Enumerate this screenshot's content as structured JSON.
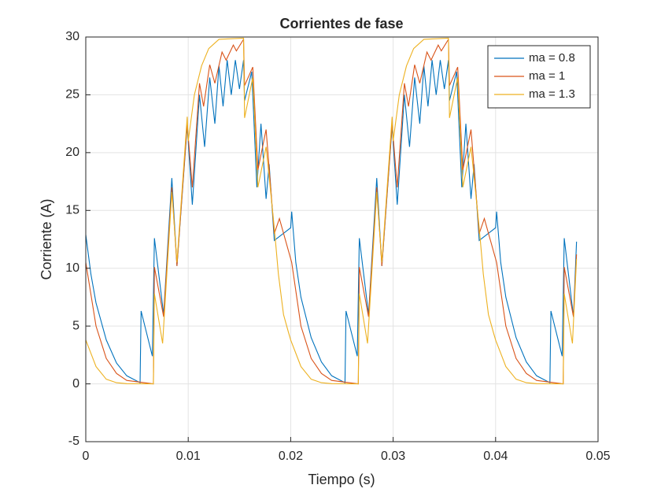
{
  "chart_data": {
    "type": "line",
    "title": "Corrientes de fase",
    "x_label": "Tiempo (s)",
    "y_label": "Corriente (A)",
    "xlim": [
      0,
      0.05
    ],
    "ylim": [
      -5,
      30
    ],
    "xticks": [
      0,
      0.01,
      0.02,
      0.03,
      0.04,
      0.05
    ],
    "yticks": [
      -5,
      0,
      5,
      10,
      15,
      20,
      25,
      30
    ],
    "grid": true,
    "legend": "top-right",
    "series": [
      {
        "name": "ma = 0.8",
        "color": "#0072BD",
        "x": [
          0,
          0.0005,
          0.001,
          0.002,
          0.003,
          0.004,
          0.0053,
          0.0054,
          0.0065,
          0.0067,
          0.0076,
          0.0084,
          0.0089,
          0.0099,
          0.0104,
          0.0111,
          0.0116,
          0.0121,
          0.0126,
          0.013,
          0.0134,
          0.0138,
          0.0142,
          0.0146,
          0.015,
          0.0154,
          0.0155,
          0.0162,
          0.0167,
          0.0171,
          0.0176,
          0.0179,
          0.0184,
          0.02,
          0.0201,
          0.0205,
          0.021,
          0.022,
          0.023,
          0.024,
          0.0253,
          0.0254,
          0.0265,
          0.0267,
          0.0276,
          0.0284,
          0.0289,
          0.0299,
          0.0304,
          0.0311,
          0.0316,
          0.0321,
          0.0326,
          0.033,
          0.0334,
          0.0338,
          0.0342,
          0.0346,
          0.035,
          0.0354,
          0.0355,
          0.0362,
          0.0367,
          0.0371,
          0.0376,
          0.0379,
          0.0384,
          0.04,
          0.0401,
          0.0405,
          0.041,
          0.042,
          0.043,
          0.044,
          0.0453,
          0.0454,
          0.0465,
          0.0467,
          0.0476,
          0.0479
        ],
        "values": [
          12.9,
          9.5,
          7,
          3.8,
          1.8,
          0.7,
          0.1,
          6.3,
          2.4,
          12.6,
          6,
          17.8,
          10.2,
          22.3,
          15.5,
          25,
          20.5,
          26.5,
          22.5,
          27.5,
          24,
          28,
          25,
          28,
          25.5,
          28,
          24.5,
          27,
          17,
          22.5,
          16,
          19,
          12.4,
          13.5,
          14.9,
          10.5,
          7.5,
          4,
          1.9,
          0.7,
          0.1,
          6.3,
          2.4,
          12.6,
          6,
          17.8,
          10.2,
          22.3,
          15.5,
          25,
          20.5,
          26.5,
          22.5,
          27.5,
          24,
          28,
          25,
          28,
          25.5,
          28,
          24.5,
          27,
          17,
          22.5,
          16,
          19,
          12.4,
          13.5,
          14.9,
          10.5,
          7.5,
          4,
          1.9,
          0.7,
          0.1,
          6.3,
          2.4,
          12.6,
          5.8,
          12.3
        ]
      },
      {
        "name": "ma = 1",
        "color": "#D95319",
        "x": [
          0,
          0.001,
          0.002,
          0.003,
          0.004,
          0.0066,
          0.0067,
          0.0076,
          0.0084,
          0.0089,
          0.0099,
          0.0104,
          0.0111,
          0.0115,
          0.0121,
          0.0126,
          0.0133,
          0.0137,
          0.0144,
          0.0147,
          0.0154,
          0.0155,
          0.0163,
          0.0168,
          0.0176,
          0.0184,
          0.0189,
          0.0201,
          0.021,
          0.022,
          0.023,
          0.024,
          0.0266,
          0.0267,
          0.0276,
          0.0284,
          0.0289,
          0.0299,
          0.0304,
          0.0311,
          0.0315,
          0.0321,
          0.0326,
          0.0333,
          0.0337,
          0.0344,
          0.0347,
          0.0354,
          0.0355,
          0.0363,
          0.0368,
          0.0376,
          0.0384,
          0.0389,
          0.0401,
          0.041,
          0.042,
          0.043,
          0.044,
          0.0466,
          0.0467,
          0.0476,
          0.0479
        ],
        "values": [
          10.5,
          5,
          2.2,
          0.9,
          0.3,
          0,
          10.1,
          5.8,
          17,
          10.2,
          22.5,
          17,
          26,
          24,
          27.6,
          26,
          28.7,
          28,
          29.3,
          28.8,
          29.8,
          25.8,
          27.4,
          18.5,
          22,
          13,
          14.3,
          10.5,
          5,
          2.2,
          0.9,
          0.3,
          0,
          10.1,
          5.8,
          17,
          10.2,
          22.5,
          17,
          26,
          24,
          27.6,
          26,
          28.7,
          28,
          29.3,
          28.8,
          29.8,
          25.8,
          27.4,
          18.5,
          22,
          13,
          14.3,
          10.5,
          5,
          2.2,
          0.9,
          0.3,
          0,
          10.1,
          5.8,
          11.2
        ]
      },
      {
        "name": "ma = 1.3",
        "color": "#EDB120",
        "x": [
          0,
          0.001,
          0.002,
          0.003,
          0.004,
          0.0066,
          0.0067,
          0.0075,
          0.0084,
          0.0089,
          0.0099,
          0.01,
          0.0106,
          0.0113,
          0.012,
          0.013,
          0.0154,
          0.0155,
          0.0163,
          0.0168,
          0.0176,
          0.0184,
          0.0188,
          0.0193,
          0.0198,
          0.02,
          0.021,
          0.022,
          0.023,
          0.024,
          0.0266,
          0.0267,
          0.0275,
          0.0284,
          0.0289,
          0.0299,
          0.03,
          0.0306,
          0.0313,
          0.032,
          0.033,
          0.0354,
          0.0355,
          0.0363,
          0.0368,
          0.0376,
          0.0384,
          0.0388,
          0.0393,
          0.0398,
          0.04,
          0.041,
          0.042,
          0.043,
          0.044,
          0.0466,
          0.0467,
          0.0475,
          0.0479
        ],
        "values": [
          3.8,
          1.5,
          0.4,
          0.1,
          0.02,
          0,
          7.8,
          3.5,
          16.6,
          10.5,
          23.1,
          21,
          25,
          27.5,
          29,
          29.8,
          29.9,
          23,
          26.5,
          17,
          20.5,
          13.5,
          9.5,
          6,
          4.4,
          3.8,
          1.5,
          0.4,
          0.1,
          0.02,
          0,
          7.8,
          3.5,
          16.6,
          10.5,
          23.1,
          21,
          25,
          27.5,
          29,
          29.8,
          29.9,
          23,
          26.5,
          17,
          20.5,
          13.5,
          9.5,
          6,
          4.4,
          3.8,
          1.5,
          0.4,
          0.1,
          0.02,
          0,
          7.8,
          3.5,
          10.8
        ]
      }
    ]
  }
}
